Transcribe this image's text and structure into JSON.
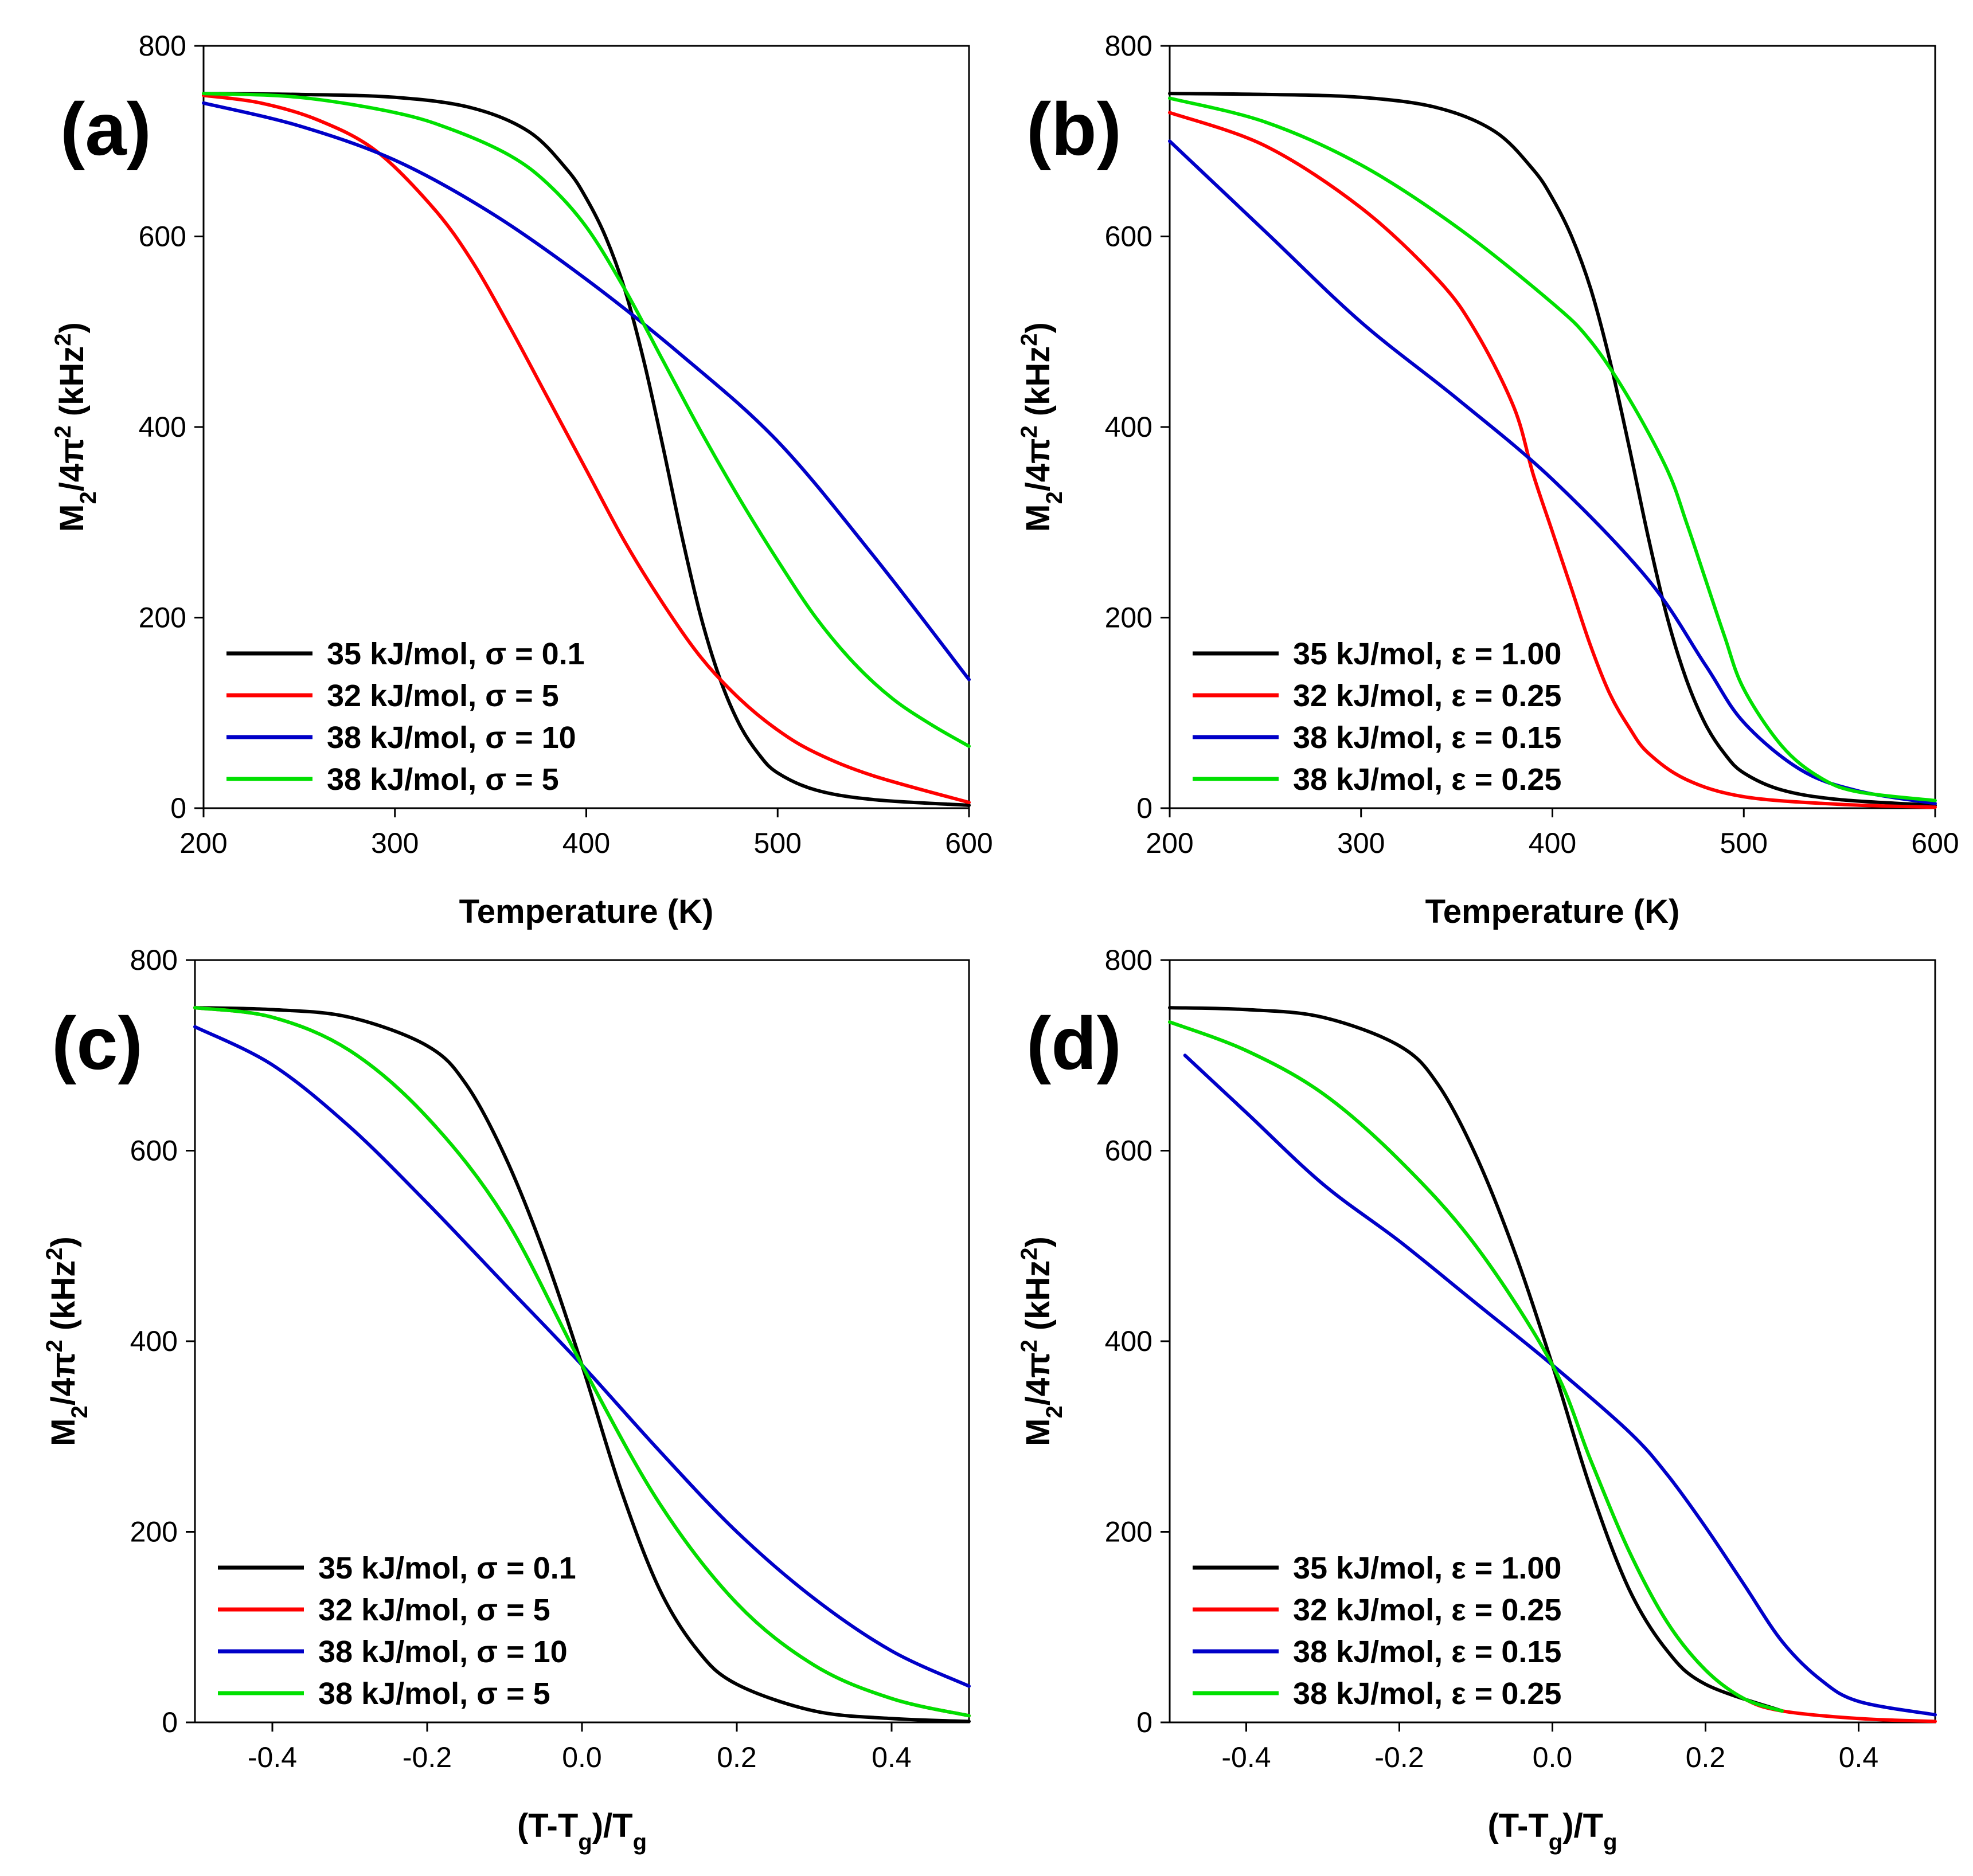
{
  "chart_data": [
    {
      "type": "line",
      "panel": "(a)",
      "xlabel": "Temperature (K)",
      "ylabel": "M2/4π2 (kHz2)",
      "ylabel_parts": [
        "M",
        "2",
        "/4π",
        "2",
        " (kHz",
        "2",
        ")"
      ],
      "xlim": [
        200,
        600
      ],
      "ylim": [
        0,
        800
      ],
      "xticks": [
        200,
        300,
        400,
        500,
        600
      ],
      "xtick_labels": [
        "200",
        "300",
        "400",
        "500",
        "600"
      ],
      "yticks": [
        0,
        200,
        400,
        600,
        800
      ],
      "ytick_labels": [
        "0",
        "200",
        "400",
        "600",
        "800"
      ],
      "legend": "bottom-left",
      "series": [
        {
          "name": "35 kJ/mol, σ = 0.1",
          "color": "#000000",
          "x": [
            200,
            250,
            300,
            340,
            370,
            390,
            400,
            410,
            420,
            430,
            440,
            450,
            460,
            470,
            480,
            490,
            500,
            520,
            550,
            600
          ],
          "y": [
            750,
            749,
            746,
            735,
            710,
            670,
            640,
            600,
            545,
            470,
            380,
            285,
            200,
            135,
            88,
            57,
            37,
            19,
            9,
            3
          ]
        },
        {
          "name": "32 kJ/mol, σ = 5",
          "color": "#ff0000",
          "x": [
            200,
            230,
            260,
            290,
            320,
            340,
            360,
            380,
            400,
            420,
            440,
            460,
            480,
            500,
            520,
            550,
            600
          ],
          "y": [
            748,
            740,
            722,
            690,
            630,
            575,
            505,
            430,
            355,
            280,
            215,
            158,
            115,
            82,
            58,
            34,
            6
          ]
        },
        {
          "name": "38 kJ/mol, σ = 10",
          "color": "#0000c8",
          "x": [
            200,
            250,
            300,
            350,
            400,
            450,
            500,
            550,
            600
          ],
          "y": [
            740,
            716,
            680,
            625,
            555,
            475,
            385,
            265,
            135
          ]
        },
        {
          "name": "38 kJ/mol, σ = 5",
          "color": "#00e000",
          "x": [
            200,
            250,
            300,
            330,
            360,
            380,
            400,
            420,
            440,
            460,
            480,
            500,
            520,
            540,
            560,
            580,
            600
          ],
          "y": [
            750,
            746,
            730,
            712,
            685,
            655,
            610,
            545,
            470,
            395,
            325,
            260,
            200,
            152,
            115,
            88,
            65
          ]
        }
      ]
    },
    {
      "type": "line",
      "panel": "(b)",
      "xlabel": "Temperature (K)",
      "ylabel": "M2/4π2 (kHz2)",
      "ylabel_parts": [
        "M",
        "2",
        "/4π",
        "2",
        " (kHz",
        "2",
        ")"
      ],
      "xlim": [
        200,
        600
      ],
      "ylim": [
        0,
        800
      ],
      "xticks": [
        200,
        300,
        400,
        500,
        600
      ],
      "xtick_labels": [
        "200",
        "300",
        "400",
        "500",
        "600"
      ],
      "yticks": [
        0,
        200,
        400,
        600,
        800
      ],
      "ytick_labels": [
        "0",
        "200",
        "400",
        "600",
        "800"
      ],
      "legend": "bottom-left",
      "series": [
        {
          "name": "35 kJ/mol, ε = 1.00",
          "color": "#000000",
          "x": [
            200,
            250,
            300,
            340,
            370,
            390,
            400,
            410,
            420,
            430,
            440,
            450,
            460,
            470,
            480,
            490,
            500,
            520,
            550,
            600
          ],
          "y": [
            750,
            749,
            746,
            735,
            710,
            670,
            640,
            600,
            545,
            470,
            380,
            285,
            200,
            135,
            88,
            57,
            37,
            19,
            9,
            3
          ]
        },
        {
          "name": "32 kJ/mol, ε = 0.25",
          "color": "#ff0000",
          "x": [
            200,
            250,
            300,
            340,
            360,
            380,
            390,
            400,
            410,
            420,
            430,
            440,
            450,
            470,
            500,
            550,
            600
          ],
          "y": [
            730,
            695,
            630,
            555,
            500,
            420,
            350,
            290,
            230,
            170,
            120,
            85,
            58,
            30,
            12,
            4,
            1
          ]
        },
        {
          "name": "38 kJ/mol, ε = 0.15",
          "color": "#0000c8",
          "x": [
            200,
            250,
            300,
            350,
            400,
            450,
            480,
            500,
            530,
            560,
            600
          ],
          "y": [
            700,
            605,
            510,
            430,
            345,
            240,
            150,
            90,
            40,
            18,
            5
          ]
        },
        {
          "name": "38 kJ/mol, ε = 0.25",
          "color": "#00e000",
          "x": [
            200,
            250,
            300,
            350,
            400,
            420,
            440,
            460,
            470,
            480,
            490,
            500,
            520,
            540,
            560,
            600
          ],
          "y": [
            745,
            720,
            675,
            610,
            530,
            490,
            430,
            355,
            300,
            240,
            180,
            125,
            65,
            32,
            17,
            8
          ]
        }
      ]
    },
    {
      "type": "line",
      "panel": "(c)",
      "xlabel": "(T-Tg)/Tg",
      "xlabel_parts": [
        "(T-T",
        "g",
        ")/T",
        "g"
      ],
      "ylabel": "M2/4π2 (kHz2)",
      "ylabel_parts": [
        "M",
        "2",
        "/4π",
        "2",
        " (kHz",
        "2",
        ")"
      ],
      "xlim": [
        -0.5,
        0.5
      ],
      "ylim": [
        0,
        800
      ],
      "xticks": [
        -0.4,
        -0.2,
        0.0,
        0.2,
        0.4
      ],
      "xtick_labels": [
        "-0.4",
        "-0.2",
        "0.0",
        "0.2",
        "0.4"
      ],
      "yticks": [
        0,
        200,
        400,
        600,
        800
      ],
      "ytick_labels": [
        "0",
        "200",
        "400",
        "600",
        "800"
      ],
      "legend": "bottom-left",
      "series": [
        {
          "name": "35 kJ/mol, σ = 0.1",
          "color": "#000000",
          "x": [
            -0.5,
            -0.4,
            -0.3,
            -0.2,
            -0.15,
            -0.1,
            -0.05,
            0.0,
            0.05,
            0.1,
            0.15,
            0.2,
            0.3,
            0.4,
            0.5
          ],
          "y": [
            750,
            748,
            740,
            710,
            670,
            595,
            495,
            375,
            245,
            140,
            75,
            40,
            12,
            4,
            1
          ]
        },
        {
          "name": "32 kJ/mol, σ = 5",
          "color": "#ff0000",
          "x": [
            -0.5,
            -0.4,
            -0.3,
            -0.2,
            -0.1,
            0.0,
            0.1,
            0.2,
            0.3,
            0.4,
            0.5
          ],
          "y": [
            750,
            740,
            705,
            635,
            530,
            375,
            230,
            125,
            60,
            25,
            7
          ]
        },
        {
          "name": "38 kJ/mol, σ = 10",
          "color": "#0000c8",
          "x": [
            -0.5,
            -0.4,
            -0.3,
            -0.2,
            -0.1,
            0.0,
            0.1,
            0.2,
            0.3,
            0.4,
            0.5
          ],
          "y": [
            730,
            690,
            625,
            545,
            460,
            375,
            285,
            200,
            130,
            75,
            38
          ]
        },
        {
          "name": "38 kJ/mol, σ = 5",
          "color": "#00e000",
          "x": [
            -0.5,
            -0.4,
            -0.3,
            -0.2,
            -0.1,
            0.0,
            0.1,
            0.2,
            0.3,
            0.4,
            0.5
          ],
          "y": [
            750,
            740,
            705,
            635,
            530,
            375,
            230,
            125,
            60,
            25,
            7
          ]
        }
      ]
    },
    {
      "type": "line",
      "panel": "(d)",
      "xlabel": "(T-Tg)/Tg",
      "xlabel_parts": [
        "(T-T",
        "g",
        ")/T",
        "g"
      ],
      "ylabel": "M2/4π2 (kHz2)",
      "ylabel_parts": [
        "M",
        "2",
        "/4π",
        "2",
        " (kHz",
        "2",
        ")"
      ],
      "xlim": [
        -0.5,
        0.5
      ],
      "ylim": [
        0,
        800
      ],
      "xticks": [
        -0.4,
        -0.2,
        0.0,
        0.2,
        0.4
      ],
      "xtick_labels": [
        "-0.4",
        "-0.2",
        "0.0",
        "0.2",
        "0.4"
      ],
      "yticks": [
        0,
        200,
        400,
        600,
        800
      ],
      "ytick_labels": [
        "0",
        "200",
        "400",
        "600",
        "800"
      ],
      "legend": "bottom-left",
      "series": [
        {
          "name": "35 kJ/mol, ε = 1.00",
          "color": "#000000",
          "x": [
            -0.5,
            -0.4,
            -0.3,
            -0.2,
            -0.15,
            -0.1,
            -0.05,
            0.0,
            0.05,
            0.1,
            0.15,
            0.2,
            0.3
          ],
          "y": [
            750,
            748,
            740,
            710,
            670,
            595,
            495,
            375,
            245,
            140,
            75,
            40,
            12
          ]
        },
        {
          "name": "32 kJ/mol, ε = 0.25",
          "color": "#ff0000",
          "x": [
            -0.5,
            -0.4,
            -0.3,
            -0.2,
            -0.1,
            0.0,
            0.05,
            0.1,
            0.15,
            0.2,
            0.25,
            0.3,
            0.4,
            0.5
          ],
          "y": [
            735,
            705,
            660,
            590,
            500,
            375,
            275,
            180,
            105,
            55,
            25,
            12,
            4,
            1
          ]
        },
        {
          "name": "38 kJ/mol, ε = 0.15",
          "color": "#0000c8",
          "x": [
            -0.48,
            -0.4,
            -0.3,
            -0.2,
            -0.1,
            0.0,
            0.1,
            0.15,
            0.2,
            0.25,
            0.3,
            0.35,
            0.4,
            0.5
          ],
          "y": [
            700,
            640,
            565,
            505,
            440,
            375,
            305,
            260,
            205,
            145,
            85,
            45,
            22,
            8
          ]
        },
        {
          "name": "38 kJ/mol, ε = 0.25",
          "color": "#00e000",
          "x": [
            -0.5,
            -0.4,
            -0.3,
            -0.2,
            -0.1,
            0.0,
            0.05,
            0.1,
            0.15,
            0.2,
            0.25,
            0.3
          ],
          "y": [
            735,
            705,
            660,
            590,
            500,
            375,
            275,
            180,
            105,
            55,
            25,
            12
          ]
        }
      ]
    }
  ]
}
